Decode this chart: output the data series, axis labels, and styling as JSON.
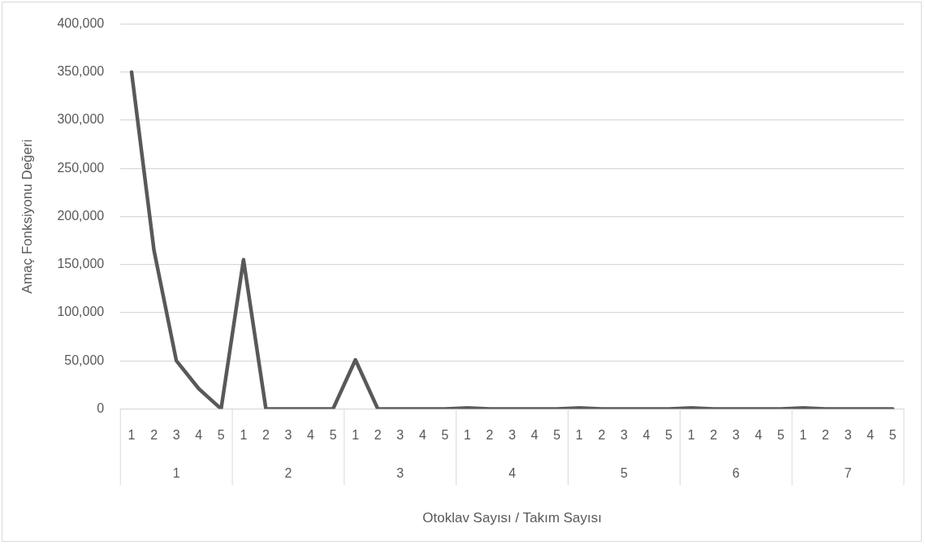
{
  "chart_data": {
    "type": "line",
    "xlabel": "Otoklav Sayısı / Takım Sayısı",
    "ylabel": "Amaç Fonksiyonu Değeri",
    "categories": [
      "1",
      "2",
      "3",
      "4",
      "5",
      "1",
      "2",
      "3",
      "4",
      "5",
      "1",
      "2",
      "3",
      "4",
      "5",
      "1",
      "2",
      "3",
      "4",
      "5",
      "1",
      "2",
      "3",
      "4",
      "5",
      "1",
      "2",
      "3",
      "4",
      "5",
      "1",
      "2",
      "3",
      "4",
      "5"
    ],
    "annotations": [
      "1",
      "2",
      "3",
      "4",
      "5",
      "6",
      "7"
    ],
    "series": [
      {
        "color": "#595959",
        "values": [
          350000,
          165000,
          50000,
          21000,
          0,
          155000,
          0,
          0,
          0,
          0,
          51000,
          0,
          0,
          0,
          0,
          1000,
          0,
          0,
          0,
          0,
          1000,
          0,
          0,
          0,
          0,
          1000,
          0,
          0,
          0,
          0,
          1000,
          0,
          0,
          0,
          0
        ]
      }
    ],
    "ylim": [
      0,
      400000
    ],
    "yticks": [
      0,
      {
        "value": 50000,
        "label": "50,000"
      },
      {
        "value": 100000,
        "label": "100,000"
      },
      {
        "value": 150000,
        "label": "150,000"
      },
      {
        "value": 200000,
        "label": "200,000"
      },
      {
        "value": 250000,
        "label": "250,000"
      },
      {
        "value": 300000,
        "label": "300,000"
      },
      {
        "value": 350000,
        "label": "350,000"
      },
      {
        "value": 400000,
        "label": "400,000"
      }
    ],
    "grid": "y",
    "legend": false,
    "marker": "none",
    "line_style": "solid"
  }
}
